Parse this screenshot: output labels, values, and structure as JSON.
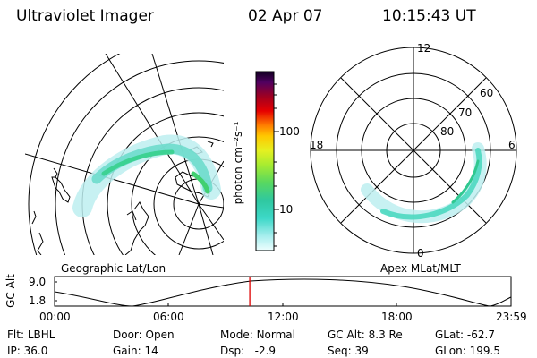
{
  "header": {
    "title": "Ultraviolet Imager",
    "date": "02 Apr 07",
    "time": "10:15:43 UT"
  },
  "geo_panel": {
    "label": "Geographic Lat/Lon"
  },
  "polar_panel": {
    "label": "Apex MLat/MLT",
    "mlt_labels": [
      "12",
      "18",
      "6",
      "0"
    ],
    "mlat_labels": [
      "60",
      "70",
      "80"
    ]
  },
  "colorbar": {
    "label": "photon cm⁻²s⁻¹",
    "ticks": [
      "100",
      "10"
    ],
    "colors": [
      "#e6ffff",
      "#a8eeee",
      "#3dd8c8",
      "#2fc8a0",
      "#58d860",
      "#a8ec30",
      "#e6f020",
      "#ffc800",
      "#ff7d00",
      "#e60000",
      "#a00020",
      "#500060",
      "#100020"
    ]
  },
  "timeline": {
    "ylabel": "GC Alt",
    "yticks": [
      "9.0",
      "1.8"
    ],
    "xticks": [
      "00:00",
      "06:00",
      "12:00",
      "18:00",
      "23:59"
    ],
    "current_time_fraction": 0.4276,
    "marker_color": "#dd0000"
  },
  "info": {
    "filter_label": "Flt:",
    "filter_value": "LBHL",
    "ip_label": "IP:",
    "ip_value": "36.0",
    "door_label": "Door:",
    "door_value": "Open",
    "gain_label": "Gain:",
    "gain_value": "14",
    "mode_label": "Mode:",
    "mode_value": "Normal",
    "dsp_label": "Dsp:",
    "dsp_value": "-2.9",
    "gcalt_label": "GC Alt:",
    "gcalt_value": "8.3 Re",
    "seq_label": "Seq:",
    "seq_value": "39",
    "glat_label": "GLat:",
    "glat_value": "-62.7",
    "glon_label": "GLon:",
    "glon_value": "199.5"
  }
}
